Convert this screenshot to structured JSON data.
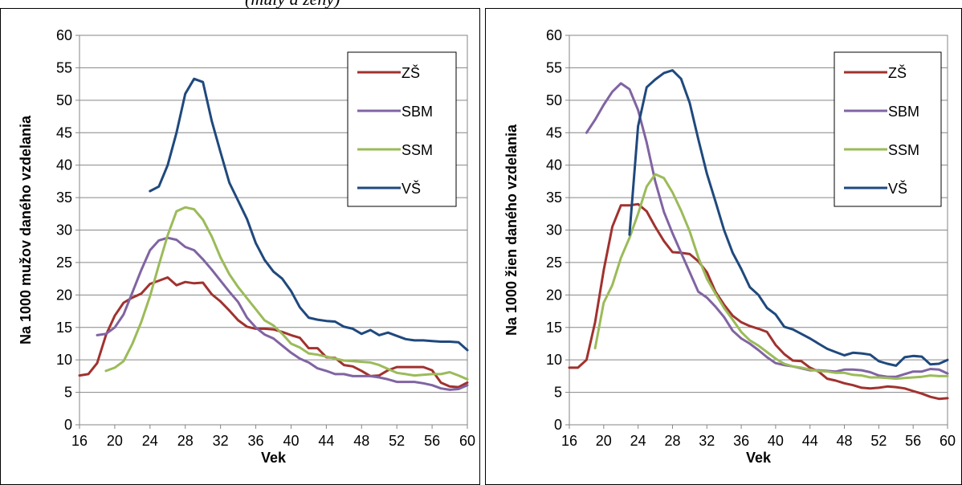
{
  "header_fragment": "(muly a ženy)",
  "chart_data": [
    {
      "type": "line",
      "xlabel": "Vek",
      "ylabel": "Na 1000 mužov daného vzdelania",
      "xlim": [
        16,
        60
      ],
      "ylim": [
        0,
        60
      ],
      "xticks": [
        "16",
        "20",
        "24",
        "28",
        "32",
        "36",
        "40",
        "44",
        "48",
        "52",
        "56",
        "60"
      ],
      "yticks": [
        "0",
        "5",
        "10",
        "15",
        "20",
        "25",
        "30",
        "35",
        "40",
        "45",
        "50",
        "55",
        "60"
      ],
      "grid": "horizontal",
      "legend": "top-right",
      "series": [
        {
          "name": "ZŠ",
          "color": "#A0322F",
          "x": [
            16,
            17,
            18,
            19,
            20,
            21,
            22,
            23,
            24,
            25,
            26,
            27,
            28,
            29,
            30,
            31,
            32,
            33,
            34,
            35,
            36,
            37,
            38,
            39,
            40,
            41,
            42,
            43,
            44,
            45,
            46,
            47,
            48,
            49,
            50,
            51,
            52,
            53,
            54,
            55,
            56,
            57,
            58,
            59,
            60
          ],
          "y": [
            7.6,
            7.8,
            9.5,
            13.8,
            16.8,
            18.8,
            19.6,
            20.2,
            21.7,
            22.2,
            22.7,
            21.5,
            22.0,
            21.8,
            21.9,
            20.1,
            19.0,
            17.6,
            16.1,
            15.1,
            14.8,
            14.8,
            14.7,
            14.3,
            13.8,
            13.4,
            11.8,
            11.8,
            10.4,
            10.3,
            9.2,
            9.0,
            8.3,
            7.5,
            7.6,
            8.4,
            8.9,
            8.9,
            8.9,
            8.9,
            8.4,
            6.5,
            5.9,
            5.8,
            6.5
          ]
        },
        {
          "name": "SBM",
          "color": "#8064A2",
          "x": [
            18,
            19,
            20,
            21,
            22,
            23,
            24,
            25,
            26,
            27,
            28,
            29,
            30,
            31,
            32,
            33,
            34,
            35,
            36,
            37,
            38,
            39,
            40,
            41,
            42,
            43,
            44,
            45,
            46,
            47,
            48,
            49,
            50,
            51,
            52,
            53,
            54,
            55,
            56,
            57,
            58,
            59,
            60
          ],
          "y": [
            13.8,
            14.0,
            15.0,
            17.0,
            20.4,
            23.8,
            26.9,
            28.4,
            28.8,
            28.5,
            27.4,
            26.9,
            25.5,
            23.9,
            22.2,
            20.5,
            18.9,
            16.5,
            15.0,
            13.9,
            13.3,
            12.2,
            11.1,
            10.2,
            9.6,
            8.7,
            8.3,
            7.8,
            7.8,
            7.5,
            7.5,
            7.5,
            7.3,
            7.0,
            6.6,
            6.6,
            6.6,
            6.4,
            6.1,
            5.6,
            5.4,
            5.5,
            6.1
          ]
        },
        {
          "name": "SSM",
          "color": "#9BBB59",
          "x": [
            19,
            20,
            21,
            22,
            23,
            24,
            25,
            26,
            27,
            28,
            29,
            30,
            31,
            32,
            33,
            34,
            35,
            36,
            37,
            38,
            39,
            40,
            41,
            42,
            43,
            44,
            45,
            46,
            47,
            48,
            49,
            50,
            51,
            52,
            53,
            54,
            55,
            56,
            57,
            58,
            59,
            60
          ],
          "y": [
            8.3,
            8.8,
            9.8,
            12.5,
            15.8,
            19.8,
            24.6,
            29.2,
            32.9,
            33.5,
            33.2,
            31.6,
            29.0,
            25.8,
            23.2,
            21.2,
            19.5,
            17.8,
            16.1,
            15.3,
            14.0,
            12.5,
            11.9,
            11.0,
            10.8,
            10.5,
            10.2,
            9.9,
            9.8,
            9.7,
            9.6,
            9.2,
            8.6,
            8.0,
            7.8,
            7.6,
            7.7,
            7.8,
            7.8,
            8.1,
            7.6,
            7.0
          ]
        },
        {
          "name": "VŠ",
          "color": "#1F497D",
          "x": [
            24,
            25,
            26,
            27,
            28,
            29,
            30,
            31,
            32,
            33,
            34,
            35,
            36,
            37,
            38,
            39,
            40,
            41,
            42,
            43,
            44,
            45,
            46,
            47,
            48,
            49,
            50,
            51,
            52,
            53,
            54,
            55,
            56,
            57,
            58,
            59,
            60
          ],
          "y": [
            36.0,
            36.7,
            40.0,
            45.0,
            51.0,
            53.3,
            52.8,
            46.8,
            42.0,
            37.3,
            34.5,
            31.7,
            28.0,
            25.4,
            23.6,
            22.5,
            20.6,
            18.1,
            16.5,
            16.2,
            16.0,
            15.9,
            15.1,
            14.8,
            14.0,
            14.6,
            13.8,
            14.2,
            13.7,
            13.2,
            13.0,
            13.0,
            12.9,
            12.8,
            12.8,
            12.7,
            11.5
          ]
        }
      ]
    },
    {
      "type": "line",
      "xlabel": "Vek",
      "ylabel": "Na 1000 žien daného vzdelania",
      "xlim": [
        16,
        60
      ],
      "ylim": [
        0,
        60
      ],
      "xticks": [
        "16",
        "20",
        "24",
        "28",
        "32",
        "36",
        "40",
        "44",
        "48",
        "52",
        "56",
        "60"
      ],
      "yticks": [
        "0",
        "5",
        "10",
        "15",
        "20",
        "25",
        "30",
        "35",
        "40",
        "45",
        "50",
        "55",
        "60"
      ],
      "grid": "horizontal",
      "legend": "top-right",
      "series": [
        {
          "name": "ZŠ",
          "color": "#A0322F",
          "x": [
            16,
            17,
            18,
            19,
            20,
            21,
            22,
            23,
            24,
            25,
            26,
            27,
            28,
            29,
            30,
            31,
            32,
            33,
            34,
            35,
            36,
            37,
            38,
            39,
            40,
            41,
            42,
            43,
            44,
            45,
            46,
            47,
            48,
            49,
            50,
            51,
            52,
            53,
            54,
            55,
            56,
            57,
            58,
            59,
            60
          ],
          "y": [
            8.8,
            8.8,
            10.0,
            15.8,
            23.8,
            30.5,
            33.8,
            33.8,
            34.0,
            32.9,
            30.5,
            28.3,
            26.6,
            26.5,
            26.3,
            25.2,
            23.5,
            20.5,
            18.5,
            16.8,
            15.8,
            15.2,
            14.8,
            14.3,
            12.3,
            10.9,
            9.9,
            9.8,
            8.8,
            8.2,
            7.1,
            6.8,
            6.4,
            6.1,
            5.7,
            5.6,
            5.7,
            5.9,
            5.8,
            5.6,
            5.2,
            4.8,
            4.3,
            4.0,
            4.1
          ]
        },
        {
          "name": "SBM",
          "color": "#8064A2",
          "x": [
            18,
            19,
            20,
            21,
            22,
            23,
            24,
            25,
            26,
            27,
            28,
            29,
            30,
            31,
            32,
            33,
            34,
            35,
            36,
            37,
            38,
            39,
            40,
            41,
            42,
            43,
            44,
            45,
            46,
            47,
            48,
            49,
            50,
            51,
            52,
            53,
            54,
            55,
            56,
            57,
            58,
            59,
            60
          ],
          "y": [
            45.0,
            47.0,
            49.3,
            51.3,
            52.6,
            51.7,
            48.5,
            43.5,
            37.5,
            32.8,
            29.5,
            26.5,
            23.5,
            20.5,
            19.6,
            18.2,
            16.6,
            14.5,
            13.3,
            12.5,
            11.5,
            10.4,
            9.5,
            9.2,
            9.0,
            8.7,
            8.4,
            8.4,
            8.3,
            8.2,
            8.5,
            8.5,
            8.4,
            8.1,
            7.6,
            7.4,
            7.4,
            7.8,
            8.2,
            8.2,
            8.6,
            8.5,
            7.9
          ]
        },
        {
          "name": "SSM",
          "color": "#9BBB59",
          "x": [
            19,
            20,
            21,
            22,
            23,
            24,
            25,
            26,
            27,
            28,
            29,
            30,
            31,
            32,
            33,
            34,
            35,
            36,
            37,
            38,
            39,
            40,
            41,
            42,
            43,
            44,
            45,
            46,
            47,
            48,
            49,
            50,
            51,
            52,
            53,
            54,
            55,
            56,
            57,
            58,
            59,
            60
          ],
          "y": [
            11.8,
            18.8,
            21.5,
            25.7,
            28.8,
            32.5,
            36.7,
            38.6,
            38.0,
            35.8,
            33.0,
            29.8,
            25.8,
            22.5,
            20.2,
            18.0,
            16.2,
            14.3,
            13.0,
            12.2,
            11.2,
            10.2,
            9.4,
            9.0,
            8.8,
            8.5,
            8.3,
            8.2,
            8.0,
            8.0,
            7.7,
            7.6,
            7.3,
            7.3,
            7.2,
            7.1,
            7.2,
            7.3,
            7.4,
            7.6,
            7.5,
            7.5
          ]
        },
        {
          "name": "VŠ",
          "color": "#1F497D",
          "x": [
            23,
            24,
            25,
            26,
            27,
            28,
            29,
            30,
            31,
            32,
            33,
            34,
            35,
            36,
            37,
            38,
            39,
            40,
            41,
            42,
            43,
            44,
            45,
            46,
            47,
            48,
            49,
            50,
            51,
            52,
            53,
            54,
            55,
            56,
            57,
            58,
            59,
            60
          ],
          "y": [
            29.3,
            46.0,
            52.0,
            53.2,
            54.2,
            54.6,
            53.3,
            49.6,
            44.0,
            38.7,
            34.4,
            30.0,
            26.5,
            24.0,
            21.2,
            20.0,
            18.0,
            17.0,
            15.1,
            14.7,
            14.0,
            13.3,
            12.5,
            11.7,
            11.2,
            10.7,
            11.1,
            11.0,
            10.8,
            9.8,
            9.4,
            9.1,
            10.4,
            10.6,
            10.5,
            9.3,
            9.4,
            10.0
          ]
        }
      ]
    }
  ]
}
